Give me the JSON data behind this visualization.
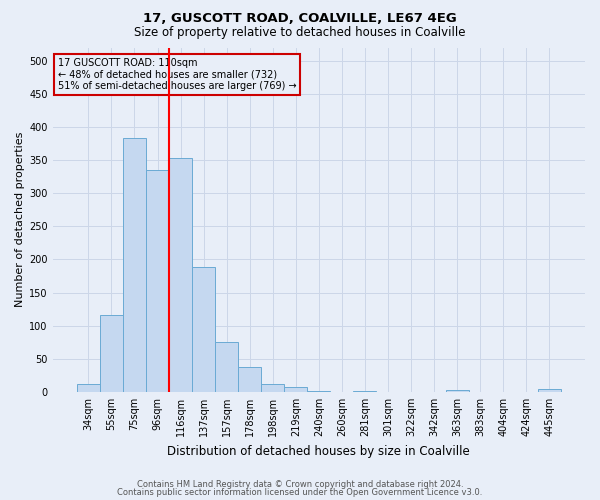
{
  "title": "17, GUSCOTT ROAD, COALVILLE, LE67 4EG",
  "subtitle": "Size of property relative to detached houses in Coalville",
  "xlabel": "Distribution of detached houses by size in Coalville",
  "ylabel": "Number of detached properties",
  "footnote1": "Contains HM Land Registry data © Crown copyright and database right 2024.",
  "footnote2": "Contains public sector information licensed under the Open Government Licence v3.0.",
  "bar_labels": [
    "34sqm",
    "55sqm",
    "75sqm",
    "96sqm",
    "116sqm",
    "137sqm",
    "157sqm",
    "178sqm",
    "198sqm",
    "219sqm",
    "240sqm",
    "260sqm",
    "281sqm",
    "301sqm",
    "322sqm",
    "342sqm",
    "363sqm",
    "383sqm",
    "404sqm",
    "424sqm",
    "445sqm"
  ],
  "bar_values": [
    12,
    116,
    384,
    335,
    353,
    188,
    75,
    38,
    12,
    7,
    2,
    0,
    2,
    0,
    0,
    0,
    3,
    0,
    0,
    0,
    4
  ],
  "bar_color": "#c5d8f0",
  "bar_edge_color": "#6aaad4",
  "grid_color": "#ccd6e8",
  "background_color": "#e8eef8",
  "redline_index": 4,
  "annotation_text": "17 GUSCOTT ROAD: 110sqm\n← 48% of detached houses are smaller (732)\n51% of semi-detached houses are larger (769) →",
  "annotation_box_edge": "#cc0000",
  "ylim": [
    0,
    520
  ],
  "yticks": [
    0,
    50,
    100,
    150,
    200,
    250,
    300,
    350,
    400,
    450,
    500
  ],
  "title_fontsize": 9.5,
  "subtitle_fontsize": 8.5,
  "xlabel_fontsize": 8.5,
  "ylabel_fontsize": 8,
  "tick_fontsize": 7,
  "annot_fontsize": 7,
  "footnote_fontsize": 6
}
